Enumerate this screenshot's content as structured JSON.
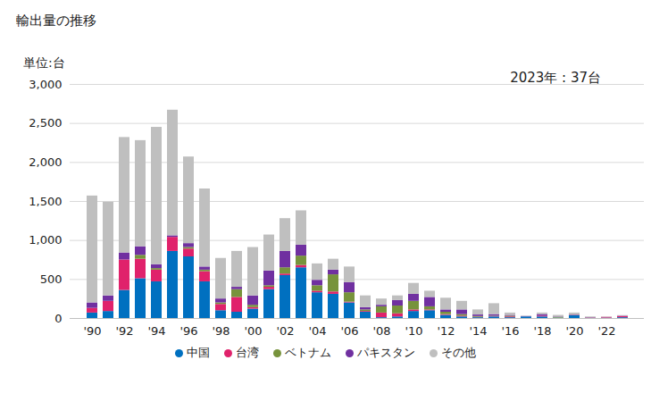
{
  "chart_data": {
    "type": "bar",
    "title": "輸出量の推移",
    "y_axis_label": "単位:台",
    "annotation": "2023年 : 37台",
    "stacked": true,
    "grid": true,
    "legend": "bottom",
    "categories": [
      "'90",
      null,
      "'92",
      null,
      "'94",
      null,
      "'96",
      null,
      "'98",
      null,
      "'00",
      null,
      "'02",
      null,
      "'04",
      null,
      "'06",
      null,
      "'08",
      null,
      "'10",
      null,
      "'12",
      null,
      "'14",
      null,
      "'16",
      null,
      "'18",
      null,
      "'20",
      null,
      "'22",
      null
    ],
    "series": [
      {
        "name": "中国",
        "color": "#0070c0",
        "values": [
          70,
          90,
          360,
          510,
          470,
          860,
          790,
          470,
          100,
          80,
          120,
          370,
          550,
          650,
          330,
          310,
          200,
          80,
          10,
          20,
          90,
          100,
          40,
          20,
          10,
          20,
          10,
          20,
          20,
          5,
          40,
          5,
          5,
          10
        ]
      },
      {
        "name": "台湾",
        "color": "#e0226b",
        "values": [
          60,
          130,
          390,
          250,
          150,
          180,
          100,
          130,
          80,
          190,
          20,
          30,
          20,
          30,
          20,
          30,
          10,
          10,
          60,
          40,
          20,
          10,
          10,
          10,
          5,
          5,
          10,
          0,
          10,
          0,
          5,
          5,
          10,
          15
        ]
      },
      {
        "name": "ベトナム",
        "color": "#77933c",
        "values": [
          0,
          0,
          0,
          50,
          20,
          0,
          20,
          20,
          20,
          100,
          30,
          20,
          80,
          120,
          70,
          220,
          120,
          20,
          80,
          100,
          110,
          40,
          30,
          20,
          10,
          5,
          10,
          0,
          0,
          10,
          0,
          0,
          0,
          0
        ]
      },
      {
        "name": "パキスタン",
        "color": "#7030a0",
        "values": [
          70,
          70,
          90,
          110,
          50,
          20,
          50,
          40,
          50,
          30,
          120,
          190,
          210,
          140,
          70,
          60,
          130,
          30,
          20,
          70,
          90,
          120,
          30,
          60,
          20,
          20,
          10,
          5,
          20,
          5,
          0,
          0,
          0,
          5
        ]
      },
      {
        "name": "その他",
        "color": "#bfbfbf",
        "values": [
          1370,
          1200,
          1480,
          1360,
          1760,
          1610,
          1110,
          1000,
          520,
          460,
          620,
          460,
          420,
          440,
          210,
          140,
          200,
          150,
          80,
          60,
          140,
          80,
          150,
          110,
          65,
          140,
          30,
          5,
          20,
          20,
          25,
          10,
          5,
          7
        ]
      }
    ],
    "ylim": [
      0,
      3000
    ],
    "yticks": [
      0,
      500,
      {
        "value": 1000,
        "label": "1,000"
      },
      {
        "value": 1500,
        "label": "1,500"
      },
      {
        "value": 2000,
        "label": "2,000"
      },
      {
        "value": 2500,
        "label": "2,500"
      },
      {
        "value": 3000,
        "label": "3,000"
      }
    ]
  }
}
